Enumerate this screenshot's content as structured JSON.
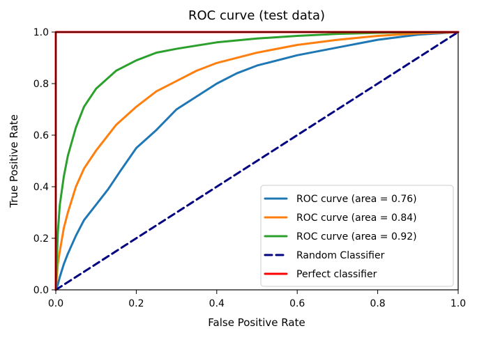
{
  "chart_data": {
    "type": "line",
    "title": "ROC curve (test data)",
    "xlabel": "False Positive Rate",
    "ylabel": "True Positive Rate",
    "xlim": [
      0.0,
      1.0
    ],
    "ylim": [
      0.0,
      1.0
    ],
    "grid": false,
    "legend_position": "lower-right",
    "xticks": [
      0.0,
      0.2,
      0.4,
      0.6,
      0.8,
      1.0
    ],
    "yticks": [
      0.0,
      0.2,
      0.4,
      0.6,
      0.8,
      1.0
    ],
    "xtick_labels": [
      "0.0",
      "0.2",
      "0.4",
      "0.6",
      "0.8",
      "1.0"
    ],
    "ytick_labels": [
      "0.0",
      "0.2",
      "0.4",
      "0.6",
      "0.8",
      "1.0"
    ],
    "series": [
      {
        "name": "ROC curve (area = 0.76)",
        "color": "#1f77b4",
        "style": "solid",
        "x": [
          0.0,
          0.005,
          0.01,
          0.02,
          0.03,
          0.05,
          0.07,
          0.1,
          0.13,
          0.16,
          0.2,
          0.25,
          0.3,
          0.35,
          0.4,
          0.45,
          0.5,
          0.6,
          0.7,
          0.8,
          0.9,
          1.0
        ],
        "y": [
          0.0,
          0.02,
          0.05,
          0.1,
          0.14,
          0.21,
          0.27,
          0.33,
          0.39,
          0.46,
          0.55,
          0.62,
          0.7,
          0.75,
          0.8,
          0.84,
          0.87,
          0.91,
          0.94,
          0.97,
          0.99,
          1.0
        ]
      },
      {
        "name": "ROC curve (area = 0.84)",
        "color": "#ff7f0e",
        "style": "solid",
        "x": [
          0.0,
          0.005,
          0.01,
          0.02,
          0.03,
          0.05,
          0.07,
          0.1,
          0.15,
          0.2,
          0.25,
          0.3,
          0.35,
          0.4,
          0.5,
          0.6,
          0.7,
          0.8,
          0.9,
          1.0
        ],
        "y": [
          0.0,
          0.1,
          0.15,
          0.24,
          0.3,
          0.4,
          0.47,
          0.54,
          0.64,
          0.71,
          0.77,
          0.81,
          0.85,
          0.88,
          0.92,
          0.95,
          0.97,
          0.985,
          0.995,
          1.0
        ]
      },
      {
        "name": "ROC curve (area = 0.92)",
        "color": "#2ca02c",
        "style": "solid",
        "x": [
          0.0,
          0.005,
          0.01,
          0.02,
          0.03,
          0.05,
          0.07,
          0.1,
          0.15,
          0.2,
          0.25,
          0.3,
          0.4,
          0.5,
          0.6,
          0.7,
          0.8,
          0.9,
          1.0
        ],
        "y": [
          0.0,
          0.22,
          0.33,
          0.44,
          0.52,
          0.63,
          0.71,
          0.78,
          0.85,
          0.89,
          0.92,
          0.935,
          0.96,
          0.975,
          0.985,
          0.993,
          0.997,
          0.999,
          1.0
        ]
      },
      {
        "name": "Random Classifier",
        "color": "#000080",
        "style": "dashed",
        "x": [
          0.0,
          1.0
        ],
        "y": [
          0.0,
          1.0
        ]
      },
      {
        "name": "Perfect classifier",
        "color": "#ff0000",
        "style": "solid",
        "x": [
          0.0,
          0.0,
          1.0
        ],
        "y": [
          0.0,
          1.0,
          1.0
        ]
      }
    ]
  }
}
